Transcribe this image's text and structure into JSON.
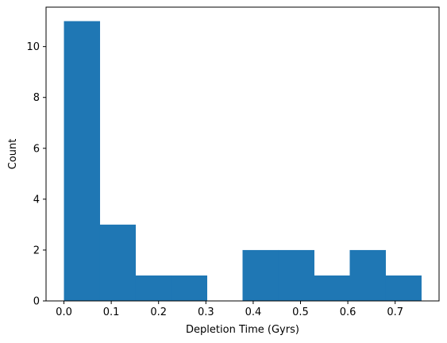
{
  "chart_data": {
    "type": "bar",
    "title": "",
    "xlabel": "Depletion Time (Gyrs)",
    "ylabel": "Count",
    "bin_edges": [
      0.0,
      0.0755,
      0.151,
      0.2265,
      0.302,
      0.3775,
      0.453,
      0.5285,
      0.604,
      0.6795,
      0.755
    ],
    "values": [
      11,
      3,
      1,
      1,
      0,
      2,
      2,
      1,
      2,
      1
    ],
    "xlim": [
      -0.0378,
      0.7928
    ],
    "ylim": [
      0,
      11.55
    ],
    "xticks": [
      0.0,
      0.1,
      0.2,
      0.3,
      0.4,
      0.5,
      0.6,
      0.7
    ],
    "xtick_labels": [
      "0.0",
      "0.1",
      "0.2",
      "0.3",
      "0.4",
      "0.5",
      "0.6",
      "0.7"
    ],
    "yticks": [
      0,
      2,
      4,
      6,
      8,
      10
    ],
    "ytick_labels": [
      "0",
      "2",
      "4",
      "6",
      "8",
      "10"
    ],
    "bar_color": "#1f77b4",
    "grid": false,
    "legend": "none"
  }
}
